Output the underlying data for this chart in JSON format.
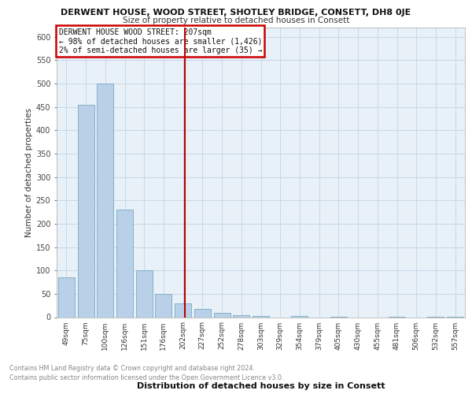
{
  "title": "DERWENT HOUSE, WOOD STREET, SHOTLEY BRIDGE, CONSETT, DH8 0JE",
  "subtitle": "Size of property relative to detached houses in Consett",
  "xlabel": "Distribution of detached houses by size in Consett",
  "ylabel": "Number of detached properties",
  "categories": [
    "49sqm",
    "75sqm",
    "100sqm",
    "126sqm",
    "151sqm",
    "176sqm",
    "202sqm",
    "227sqm",
    "252sqm",
    "278sqm",
    "303sqm",
    "329sqm",
    "354sqm",
    "379sqm",
    "405sqm",
    "430sqm",
    "455sqm",
    "481sqm",
    "506sqm",
    "532sqm",
    "557sqm"
  ],
  "values": [
    85,
    455,
    500,
    230,
    100,
    50,
    30,
    17,
    10,
    5,
    2,
    0,
    2,
    0,
    1,
    0,
    0,
    1,
    0,
    1,
    1
  ],
  "bar_color": "#b8d0e8",
  "bar_edge_color": "#7aaabf",
  "grid_color": "#c8d8e8",
  "background_color": "#e8f0f8",
  "vline_color": "#bb0000",
  "annotation_line1": "DERWENT HOUSE WOOD STREET: 207sqm",
  "annotation_line2": "← 98% of detached houses are smaller (1,426)",
  "annotation_line3": "2% of semi-detached houses are larger (35) →",
  "annotation_box_edge_color": "#cc0000",
  "footer_line1": "Contains HM Land Registry data © Crown copyright and database right 2024.",
  "footer_line2": "Contains public sector information licensed under the Open Government Licence v3.0.",
  "ylim": [
    0,
    620
  ],
  "yticks": [
    0,
    50,
    100,
    150,
    200,
    250,
    300,
    350,
    400,
    450,
    500,
    550,
    600
  ]
}
